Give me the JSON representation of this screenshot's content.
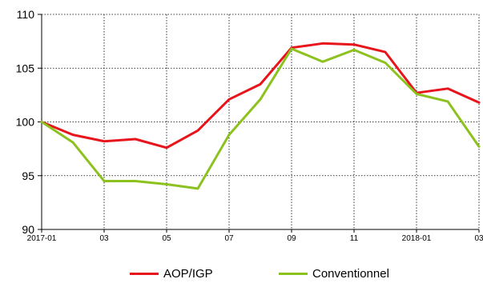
{
  "chart_data": {
    "type": "line",
    "x": [
      "2017-01",
      "02",
      "03",
      "04",
      "05",
      "06",
      "07",
      "08",
      "09",
      "10",
      "11",
      "12",
      "2018-01",
      "02",
      "03"
    ],
    "x_tick_labels": [
      "2017-01",
      "03",
      "05",
      "07",
      "09",
      "11",
      "2018-01",
      "03"
    ],
    "y_ticks": [
      90,
      95,
      100,
      105,
      110
    ],
    "ylim": [
      90,
      110
    ],
    "grid": true,
    "legend_position": "bottom",
    "series": [
      {
        "name": "AOP/IGP",
        "color": "#e8141c",
        "values": [
          100,
          98.8,
          98.2,
          98.4,
          97.6,
          99.2,
          102.1,
          103.5,
          106.9,
          107.3,
          107.2,
          106.5,
          102.7,
          103.1,
          101.8
        ]
      },
      {
        "name": "Conventionnel",
        "color": "#8cc21e",
        "values": [
          100,
          98.1,
          94.5,
          94.5,
          94.2,
          93.8,
          98.8,
          102.1,
          106.8,
          105.6,
          106.7,
          105.5,
          102.6,
          101.9,
          97.7
        ]
      }
    ]
  }
}
